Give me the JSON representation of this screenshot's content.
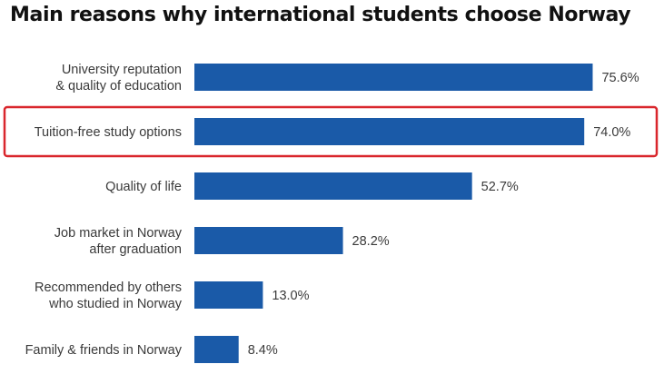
{
  "chart_data": {
    "type": "bar",
    "orientation": "horizontal",
    "title": "Main reasons why international students choose Norway",
    "categories": [
      [
        "University reputation",
        "& quality of education"
      ],
      [
        "Tuition-free study options"
      ],
      [
        "Quality of life"
      ],
      [
        "Job market in Norway",
        "after graduation"
      ],
      [
        "Recommended by others",
        "who studied in Norway"
      ],
      [
        "Family & friends in Norway"
      ]
    ],
    "values": [
      75.6,
      74.0,
      52.7,
      28.2,
      13.0,
      8.4
    ],
    "value_labels": [
      "75.6%",
      "74.0%",
      "52.7%",
      "28.2%",
      "13.0%",
      "8.4%"
    ],
    "unit": "%",
    "xlim": [
      0,
      80
    ],
    "highlighted_category_index": 1,
    "grid": false,
    "legend": "none",
    "colors": {
      "bar": "#1a5aa8",
      "highlight_border": "#d9262c",
      "text": "#3a3a3a",
      "title": "#111111"
    }
  }
}
